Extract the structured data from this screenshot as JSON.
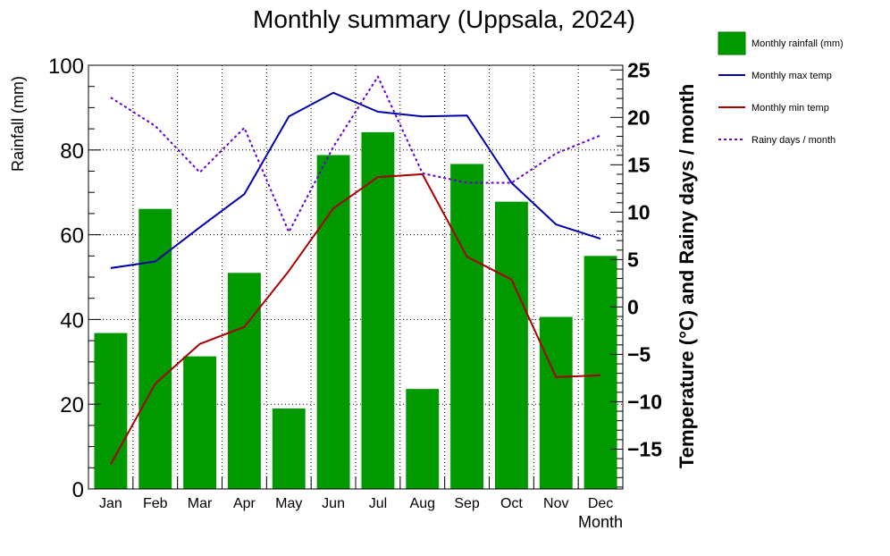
{
  "chart_data": {
    "type": "bar",
    "title": "Monthly summary (Uppsala, 2024)",
    "xlabel": "Month",
    "ylabel": "Rainfall (mm)",
    "y2label": "Temperature (°C) and Rainy days / month",
    "categories": [
      "Jan",
      "Feb",
      "Mar",
      "Apr",
      "May",
      "Jun",
      "Jul",
      "Aug",
      "Sep",
      "Oct",
      "Nov",
      "Dec"
    ],
    "ylim": [
      0,
      100
    ],
    "y2lim": [
      -19.2,
      25.5
    ],
    "yticks": [
      0,
      20,
      40,
      60,
      80,
      100
    ],
    "y2ticks": [
      -15,
      -10,
      -5,
      0,
      5,
      10,
      15,
      20,
      25
    ],
    "grid": true,
    "legend_position": "right",
    "series": [
      {
        "name": "Monthly rainfall (mm)",
        "kind": "bar",
        "axis": "left",
        "color": "#009900",
        "values": [
          36.8,
          66.1,
          31.3,
          51.0,
          19.0,
          78.8,
          84.2,
          23.6,
          76.7,
          67.8,
          40.6,
          55.0
        ]
      },
      {
        "name": "Monthly max temp",
        "kind": "line",
        "axis": "right",
        "color": "#0000aa",
        "dash": "solid",
        "values": [
          4.1,
          4.8,
          8.4,
          11.9,
          20.1,
          22.6,
          20.6,
          20.1,
          20.2,
          13.1,
          8.7,
          7.2
        ]
      },
      {
        "name": "Monthly min temp",
        "kind": "line",
        "axis": "right",
        "color": "#aa0000",
        "dash": "solid",
        "values": [
          -16.6,
          -8.1,
          -3.9,
          -2.1,
          3.8,
          10.4,
          13.7,
          14.0,
          5.3,
          2.9,
          -7.4,
          -7.2
        ]
      },
      {
        "name": "Rainy days / month",
        "kind": "line",
        "axis": "right",
        "color": "#6600cc",
        "dash": "dotted",
        "values": [
          22.1,
          19.1,
          14.2,
          18.9,
          7.9,
          16.9,
          24.3,
          14.1,
          13.1,
          13.1,
          16.2,
          18.1
        ]
      }
    ]
  }
}
